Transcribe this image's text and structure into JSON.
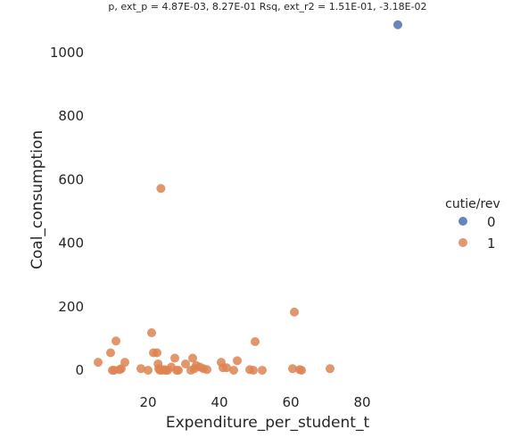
{
  "chart_data": {
    "type": "scatter",
    "title": "p, ext_p = 4.87E-03, 8.27E-01 Rsq, ext_r2 = 1.51E-01, -3.18E-02",
    "xlabel": "Expenditure_per_student_t",
    "ylabel": "Coal_consumption",
    "xlim": [
      2,
      98
    ],
    "ylim": [
      -98,
      1120
    ],
    "xticks": [
      "20",
      "40",
      "60",
      "80"
    ],
    "yticks": [
      "0",
      "200",
      "400",
      "600",
      "800",
      "1000"
    ],
    "xtick_values": [
      20,
      40,
      60,
      80
    ],
    "ytick_values": [
      0,
      200,
      400,
      600,
      800,
      1000
    ],
    "grid": false,
    "legend": {
      "title": "cutie/rev",
      "placement": "right"
    },
    "series": [
      {
        "name": "0",
        "color": "#4c72b0",
        "points": [
          [
            90.0,
            1087
          ]
        ]
      },
      {
        "name": "1",
        "color": "#dd8452",
        "points": [
          [
            6,
            25
          ],
          [
            9.5,
            55
          ],
          [
            10.0,
            0
          ],
          [
            10.5,
            0
          ],
          [
            11.0,
            92
          ],
          [
            12.0,
            2
          ],
          [
            12.5,
            5
          ],
          [
            13.5,
            25
          ],
          [
            18.0,
            5
          ],
          [
            20.0,
            0
          ],
          [
            21.0,
            118
          ],
          [
            21.5,
            55
          ],
          [
            22.5,
            55
          ],
          [
            22.8,
            20
          ],
          [
            23.0,
            5
          ],
          [
            23.3,
            0
          ],
          [
            23.6,
            572
          ],
          [
            24.0,
            0
          ],
          [
            24.5,
            2
          ],
          [
            25.0,
            0
          ],
          [
            25.5,
            0
          ],
          [
            26.5,
            10
          ],
          [
            27.5,
            38
          ],
          [
            28.0,
            0
          ],
          [
            28.5,
            0
          ],
          [
            30.5,
            20
          ],
          [
            32.0,
            0
          ],
          [
            32.5,
            38
          ],
          [
            33.0,
            5
          ],
          [
            33.5,
            15
          ],
          [
            34.5,
            10
          ],
          [
            35.5,
            5
          ],
          [
            36.5,
            2
          ],
          [
            40.5,
            25
          ],
          [
            41.0,
            8
          ],
          [
            42.0,
            8
          ],
          [
            44.0,
            0
          ],
          [
            45.0,
            30
          ],
          [
            48.5,
            2
          ],
          [
            49.5,
            0
          ],
          [
            50.0,
            90
          ],
          [
            52.0,
            0
          ],
          [
            60.5,
            5
          ],
          [
            61.0,
            183
          ],
          [
            62.5,
            2
          ],
          [
            63.0,
            0
          ],
          [
            71.0,
            5
          ]
        ]
      }
    ]
  }
}
